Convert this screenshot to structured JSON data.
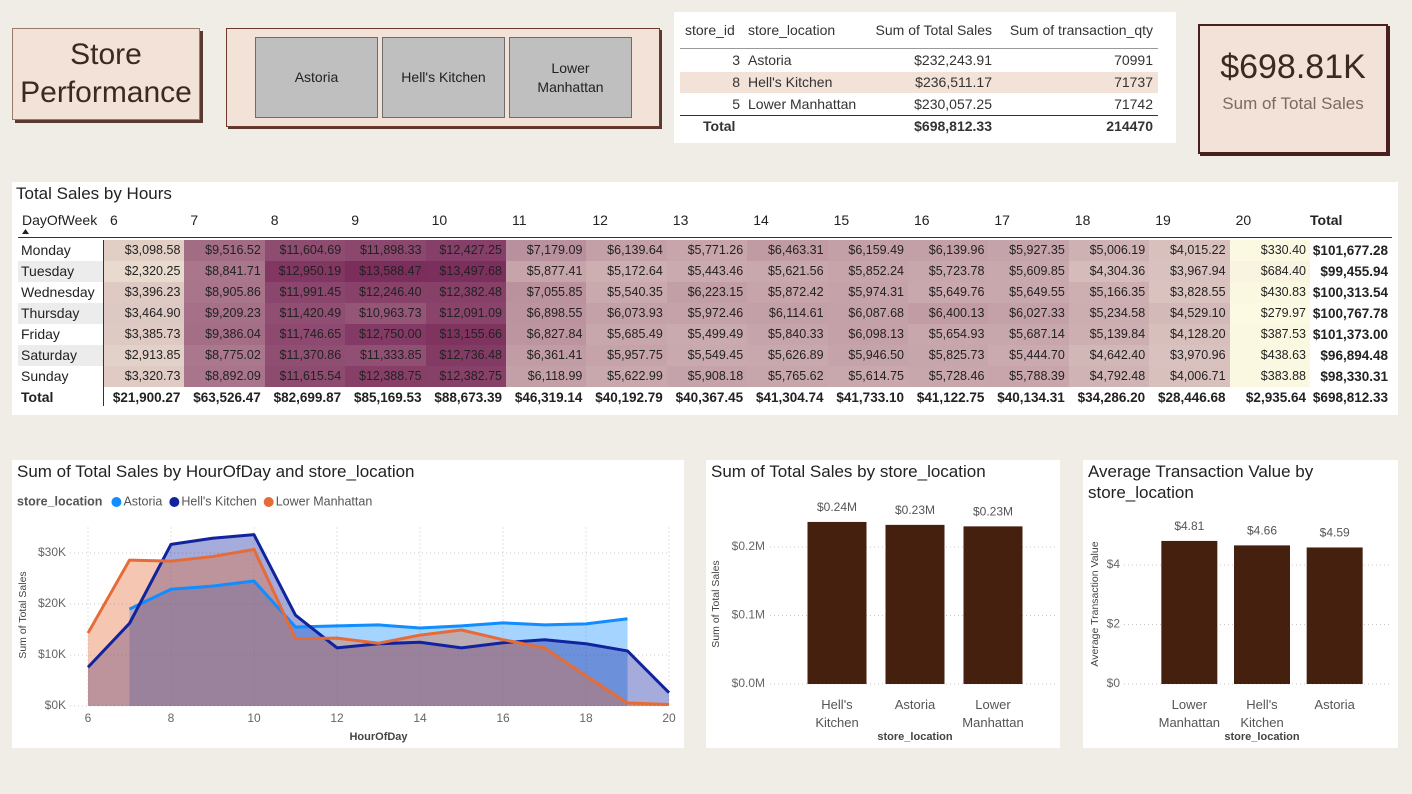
{
  "title": "Store Performance",
  "slicer": {
    "items": [
      "Astoria",
      "Hell's Kitchen",
      "Lower Manhattan"
    ]
  },
  "summary_table": {
    "columns": [
      "store_id",
      "store_location",
      "Sum of Total Sales",
      "Sum of transaction_qty"
    ],
    "rows": [
      [
        3,
        "Astoria",
        "$232,243.91",
        70991
      ],
      [
        8,
        "Hell's Kitchen",
        "$236,511.17",
        71737
      ],
      [
        5,
        "Lower Manhattan",
        "$230,057.25",
        71742
      ]
    ],
    "total": [
      "Total",
      "$698,812.33",
      214470
    ]
  },
  "kpi": {
    "value": "$698.81K",
    "label": "Sum of Total Sales"
  },
  "matrix": {
    "title": "Total Sales by Hours",
    "row_header": "DayOfWeek",
    "columns": [
      6,
      7,
      8,
      9,
      10,
      11,
      12,
      13,
      14,
      15,
      16,
      17,
      18,
      19,
      20,
      "Total"
    ],
    "rows": [
      {
        "label": "Monday",
        "cells": [
          "$3,098.58",
          "$9,516.52",
          "$11,604.69",
          "$11,898.33",
          "$12,427.25",
          "$7,179.09",
          "$6,139.64",
          "$5,771.26",
          "$6,463.31",
          "$6,159.49",
          "$6,139.96",
          "$5,927.35",
          "$5,006.19",
          "$4,015.22",
          "$330.40",
          "$101,677.28"
        ]
      },
      {
        "label": "Tuesday",
        "cells": [
          "$2,320.25",
          "$8,841.71",
          "$12,950.19",
          "$13,588.47",
          "$13,497.68",
          "$5,877.41",
          "$5,172.64",
          "$5,443.46",
          "$5,621.56",
          "$5,852.24",
          "$5,723.78",
          "$5,609.85",
          "$4,304.36",
          "$3,967.94",
          "$684.40",
          "$99,455.94"
        ]
      },
      {
        "label": "Wednesday",
        "cells": [
          "$3,396.23",
          "$8,905.86",
          "$11,991.45",
          "$12,246.40",
          "$12,382.48",
          "$7,055.85",
          "$5,540.35",
          "$6,223.15",
          "$5,872.42",
          "$5,974.31",
          "$5,649.76",
          "$5,649.55",
          "$5,166.35",
          "$3,828.55",
          "$430.83",
          "$100,313.54"
        ]
      },
      {
        "label": "Thursday",
        "cells": [
          "$3,464.90",
          "$9,209.23",
          "$11,420.49",
          "$10,963.73",
          "$12,091.09",
          "$6,898.55",
          "$6,073.93",
          "$5,972.46",
          "$6,114.61",
          "$6,087.68",
          "$6,400.13",
          "$6,027.33",
          "$5,234.58",
          "$4,529.10",
          "$279.97",
          "$100,767.78"
        ]
      },
      {
        "label": "Friday",
        "cells": [
          "$3,385.73",
          "$9,386.04",
          "$11,746.65",
          "$12,750.00",
          "$13,155.66",
          "$6,827.84",
          "$5,685.49",
          "$5,499.49",
          "$5,840.33",
          "$6,098.13",
          "$5,654.93",
          "$5,687.14",
          "$5,139.84",
          "$4,128.20",
          "$387.53",
          "$101,373.00"
        ]
      },
      {
        "label": "Saturday",
        "cells": [
          "$2,913.85",
          "$8,775.02",
          "$11,370.86",
          "$11,333.85",
          "$12,736.48",
          "$6,361.41",
          "$5,957.75",
          "$5,549.45",
          "$5,626.89",
          "$5,946.50",
          "$5,825.73",
          "$5,444.70",
          "$4,642.40",
          "$3,970.96",
          "$438.63",
          "$96,894.48"
        ]
      },
      {
        "label": "Sunday",
        "cells": [
          "$3,320.73",
          "$8,892.09",
          "$11,615.54",
          "$12,388.75",
          "$12,382.75",
          "$6,118.99",
          "$5,622.99",
          "$5,908.18",
          "$5,765.62",
          "$5,614.75",
          "$5,728.46",
          "$5,788.39",
          "$4,792.48",
          "$4,006.71",
          "$383.88",
          "$98,330.31"
        ]
      }
    ],
    "total": {
      "label": "Total",
      "cells": [
        "$21,900.27",
        "$63,526.47",
        "$82,699.87",
        "$85,169.53",
        "$88,673.39",
        "$46,319.14",
        "$40,192.79",
        "$40,367.45",
        "$41,304.74",
        "$41,733.10",
        "$41,122.75",
        "$40,134.31",
        "$34,286.20",
        "$28,446.68",
        "$2,935.64",
        "$698,812.33"
      ]
    }
  },
  "chart_data": [
    {
      "type": "area",
      "title": "Sum of Total Sales by HourOfDay and store_location",
      "legend_title": "store_location",
      "x_label": "HourOfDay",
      "y_label": "Sum of Total Sales",
      "x": [
        6,
        7,
        8,
        9,
        10,
        11,
        12,
        13,
        14,
        15,
        16,
        17,
        18,
        19,
        20
      ],
      "series": [
        {
          "name": "Astoria",
          "color": "#118dff",
          "values": [
            null,
            19000,
            22900,
            23500,
            24500,
            15500,
            15700,
            15900,
            15300,
            15700,
            16300,
            15900,
            16100,
            17100,
            null
          ]
        },
        {
          "name": "Hell's Kitchen",
          "color": "#12239e",
          "values": [
            7600,
            16200,
            31700,
            32900,
            33600,
            17800,
            11400,
            12200,
            12500,
            11400,
            12400,
            13000,
            12200,
            10800,
            2600
          ]
        },
        {
          "name": "Lower Manhattan",
          "color": "#e66c37",
          "values": [
            14300,
            28600,
            28400,
            29300,
            30700,
            13200,
            13300,
            12300,
            13900,
            14900,
            13000,
            11400,
            5900,
            600,
            300
          ]
        }
      ],
      "xlim": [
        6,
        20
      ],
      "xticks": [
        6,
        8,
        10,
        12,
        14,
        16,
        18,
        20
      ],
      "ylim": [
        0,
        35000
      ],
      "yticks": [
        {
          "value": 0,
          "label": "$0K"
        },
        {
          "value": 10000,
          "label": "$10K"
        },
        {
          "value": 20000,
          "label": "$20K"
        },
        {
          "value": 30000,
          "label": "$30K"
        }
      ],
      "grid": true
    },
    {
      "type": "bar",
      "title": "Sum of Total Sales by store_location",
      "x_label": "store_location",
      "y_label": "Sum of Total Sales",
      "categories": [
        "Hell's Kitchen",
        "Astoria",
        "Lower Manhattan"
      ],
      "values": [
        236511.17,
        232243.91,
        230057.25
      ],
      "value_labels": [
        "$0.24M",
        "$0.23M",
        "$0.23M"
      ],
      "color": "#45200f",
      "ylim": [
        0,
        270000
      ],
      "yticks": [
        {
          "value": 0,
          "label": "$0.0M"
        },
        {
          "value": 100000,
          "label": "$0.1M"
        },
        {
          "value": 200000,
          "label": "$0.2M"
        }
      ],
      "grid": true
    },
    {
      "type": "bar",
      "title": "Average Transaction Value by store_location",
      "x_label": "store_location",
      "y_label": "Average Transaction Value",
      "categories": [
        "Lower Manhattan",
        "Hell's Kitchen",
        "Astoria"
      ],
      "values": [
        4.81,
        4.66,
        4.59
      ],
      "value_labels": [
        "$4.81",
        "$4.66",
        "$4.59"
      ],
      "color": "#45200f",
      "ylim": [
        0,
        5.5
      ],
      "yticks": [
        {
          "value": 0,
          "label": "$0"
        },
        {
          "value": 2,
          "label": "$2"
        },
        {
          "value": 4,
          "label": "$4"
        }
      ],
      "grid": true
    }
  ]
}
